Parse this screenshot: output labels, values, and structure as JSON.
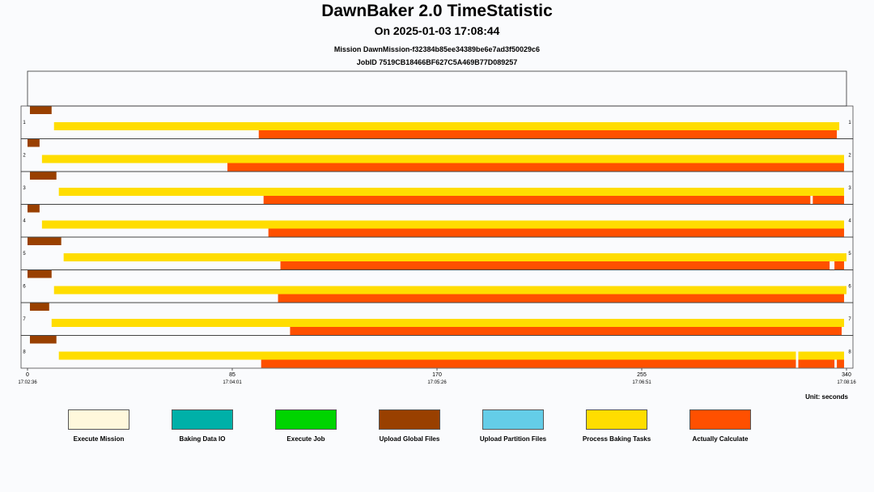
{
  "header": {
    "title": "DawnBaker 2.0 TimeStatistic",
    "subtitle": "On  2025-01-03 17:08:44",
    "mission": "Mission  DawnMission-f32384b85ee34389be6e7ad3f50029c6",
    "jobid": "JobID 7519CB18466BF627C5A469B77D089257"
  },
  "unit_label": "Unit: seconds",
  "chart_data": {
    "type": "gantt",
    "x_range": [
      0,
      340
    ],
    "x_ticks": [
      {
        "value": 0,
        "label": "0",
        "time": "17:02:36"
      },
      {
        "value": 85,
        "label": "85",
        "time": "17:04:01"
      },
      {
        "value": 170,
        "label": "170",
        "time": "17:05:26"
      },
      {
        "value": 255,
        "label": "255",
        "time": "17:06:51"
      },
      {
        "value": 340,
        "label": "340",
        "time": "17:08:16"
      }
    ],
    "categories": [
      {
        "name": "Execute Mission",
        "color": "#FFF8DC"
      },
      {
        "name": "Baking Data IO",
        "color": "#00B0A8"
      },
      {
        "name": "Execute Job",
        "color": "#00D400"
      },
      {
        "name": "Upload Global Files",
        "color": "#994000"
      },
      {
        "name": "Upload Partition Files",
        "color": "#64CDE8"
      },
      {
        "name": "Process Baking Tasks",
        "color": "#FFDD00"
      },
      {
        "name": "Actually Calculate",
        "color": "#FF5000"
      }
    ],
    "rows": [
      {
        "label": "1",
        "segments": [
          {
            "category": "Upload Global Files",
            "start": 1,
            "end": 10
          },
          {
            "category": "Process Baking Tasks",
            "start": 11,
            "end": 337
          },
          {
            "category": "Actually Calculate",
            "start": 96,
            "end": 336
          }
        ]
      },
      {
        "label": "2",
        "segments": [
          {
            "category": "Upload Global Files",
            "start": 0,
            "end": 5
          },
          {
            "category": "Process Baking Tasks",
            "start": 6,
            "end": 339
          },
          {
            "category": "Actually Calculate",
            "start": 83,
            "end": 339
          }
        ]
      },
      {
        "label": "3",
        "segments": [
          {
            "category": "Upload Global Files",
            "start": 1,
            "end": 12
          },
          {
            "category": "Process Baking Tasks",
            "start": 13,
            "end": 339
          },
          {
            "category": "Actually Calculate",
            "start": 98,
            "end": 325
          },
          {
            "category": "Actually Calculate",
            "start": 326,
            "end": 339
          }
        ]
      },
      {
        "label": "4",
        "segments": [
          {
            "category": "Upload Global Files",
            "start": 0,
            "end": 5
          },
          {
            "category": "Process Baking Tasks",
            "start": 6,
            "end": 339
          },
          {
            "category": "Actually Calculate",
            "start": 100,
            "end": 339
          }
        ]
      },
      {
        "label": "5",
        "segments": [
          {
            "category": "Upload Global Files",
            "start": 0,
            "end": 14
          },
          {
            "category": "Process Baking Tasks",
            "start": 15,
            "end": 340
          },
          {
            "category": "Actually Calculate",
            "start": 105,
            "end": 333
          },
          {
            "category": "Actually Calculate",
            "start": 335,
            "end": 339
          }
        ]
      },
      {
        "label": "6",
        "segments": [
          {
            "category": "Upload Global Files",
            "start": 0,
            "end": 10
          },
          {
            "category": "Process Baking Tasks",
            "start": 11,
            "end": 340
          },
          {
            "category": "Actually Calculate",
            "start": 104,
            "end": 339
          }
        ]
      },
      {
        "label": "7",
        "segments": [
          {
            "category": "Upload Global Files",
            "start": 1,
            "end": 9
          },
          {
            "category": "Process Baking Tasks",
            "start": 10,
            "end": 339
          },
          {
            "category": "Actually Calculate",
            "start": 109,
            "end": 338
          }
        ]
      },
      {
        "label": "8",
        "segments": [
          {
            "category": "Upload Global Files",
            "start": 1,
            "end": 12
          },
          {
            "category": "Process Baking Tasks",
            "start": 13,
            "end": 319
          },
          {
            "category": "Process Baking Tasks",
            "start": 320,
            "end": 339
          },
          {
            "category": "Actually Calculate",
            "start": 97,
            "end": 319
          },
          {
            "category": "Actually Calculate",
            "start": 320,
            "end": 335
          },
          {
            "category": "Actually Calculate",
            "start": 336,
            "end": 339
          }
        ]
      }
    ]
  }
}
